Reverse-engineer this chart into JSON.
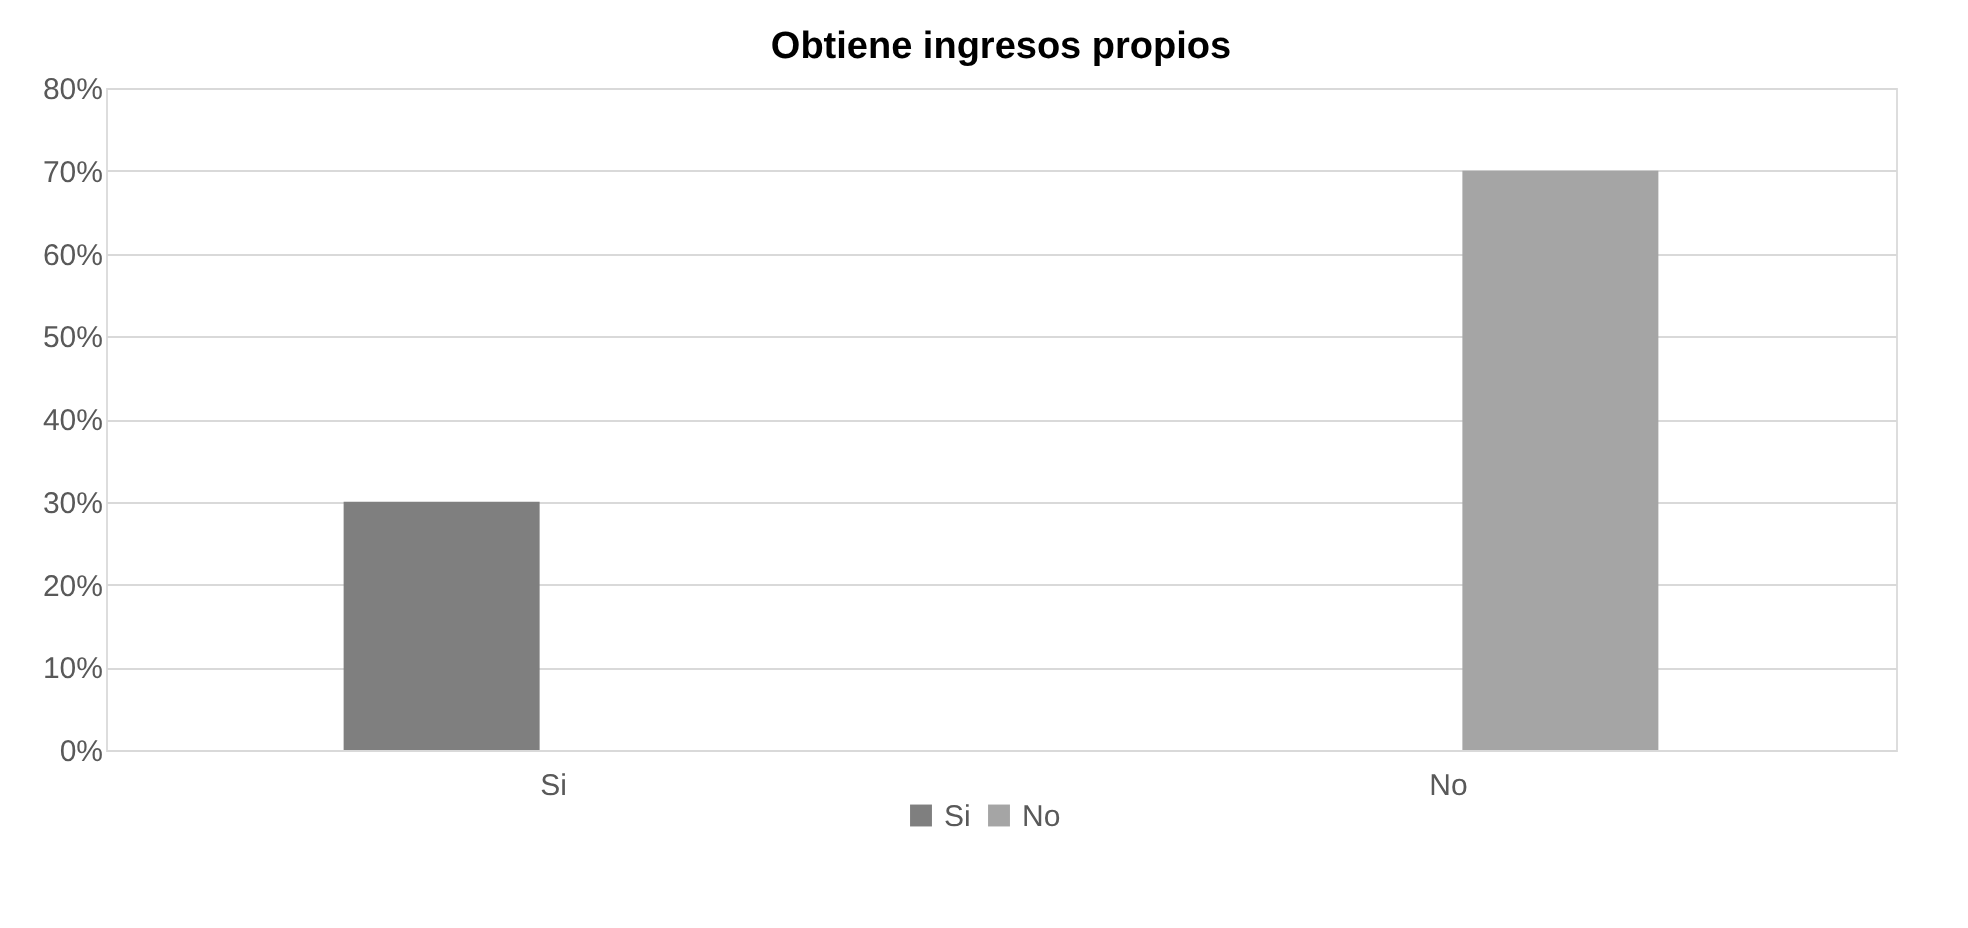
{
  "chart_data": {
    "type": "bar",
    "title": "Obtiene ingresos propios",
    "categories": [
      "Si",
      "No"
    ],
    "series": [
      {
        "name": "Si",
        "color": "#7f7f7f",
        "values": [
          30,
          null
        ]
      },
      {
        "name": "No",
        "color": "#a5a5a5",
        "values": [
          null,
          70
        ]
      }
    ],
    "ylim": [
      0,
      80
    ],
    "yticks": [
      {
        "value": 0,
        "label": "0%"
      },
      {
        "value": 10,
        "label": "10%"
      },
      {
        "value": 20,
        "label": "20%"
      },
      {
        "value": 30,
        "label": "30%"
      },
      {
        "value": 40,
        "label": "40%"
      },
      {
        "value": 50,
        "label": "50%"
      },
      {
        "value": 60,
        "label": "60%"
      },
      {
        "value": 70,
        "label": "70%"
      },
      {
        "value": 80,
        "label": "80%"
      }
    ],
    "grid": "y",
    "legend": "bottom"
  }
}
